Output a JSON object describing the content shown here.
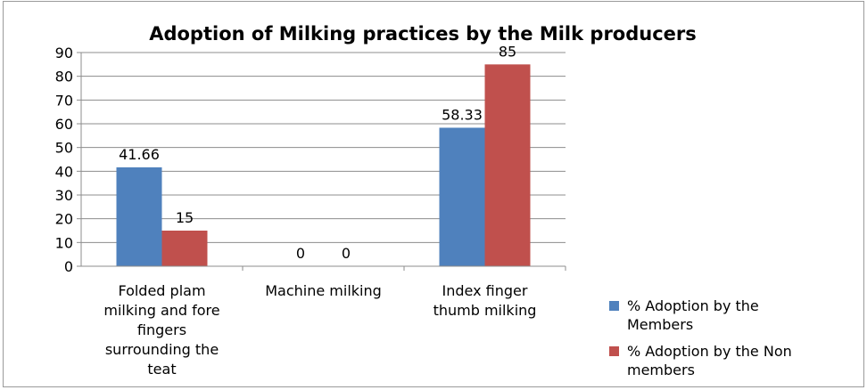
{
  "chart_data": {
    "type": "bar",
    "title": "Adoption  of Milking practices by the Milk producers",
    "xlabel": "",
    "ylabel": "",
    "ylim": [
      0,
      90
    ],
    "y_ticks": [
      0,
      10,
      20,
      30,
      40,
      50,
      60,
      70,
      80,
      90
    ],
    "grid": true,
    "legend_position": "right",
    "categories": [
      [
        "Folded plam",
        "milking and fore",
        "fingers",
        "surrounding the",
        "teat"
      ],
      [
        "Machine milking"
      ],
      [
        "Index finger",
        "thumb milking"
      ]
    ],
    "series": [
      {
        "name": [
          "% Adoption by the",
          "Members"
        ],
        "color": "#4F81BD",
        "values": [
          41.66,
          0,
          58.33
        ],
        "labels": [
          "41.66",
          "0",
          "58.33"
        ]
      },
      {
        "name": [
          "% Adoption by the Non",
          "members"
        ],
        "color": "#C0504D",
        "values": [
          15,
          0,
          85
        ],
        "labels": [
          "15",
          "0",
          "85"
        ]
      }
    ]
  }
}
